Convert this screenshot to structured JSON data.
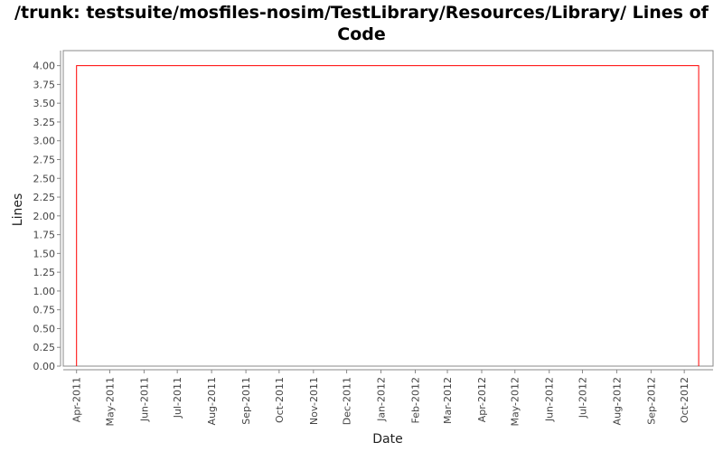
{
  "chart_data": {
    "type": "line",
    "title": "/trunk: testsuite/mosfiles-nosim/TestLibrary/Resources/Library/ Lines of Code",
    "xlabel": "Date",
    "ylabel": "Lines",
    "ylim": [
      0,
      4.2
    ],
    "xlim": [
      "2011-03-20",
      "2012-10-27"
    ],
    "yticks": [
      "0.00",
      "0.25",
      "0.50",
      "0.75",
      "1.00",
      "1.25",
      "1.50",
      "1.75",
      "2.00",
      "2.25",
      "2.50",
      "2.75",
      "3.00",
      "3.25",
      "3.50",
      "3.75",
      "4.00"
    ],
    "xticks": [
      {
        "date": "2011-04-01",
        "label": "Apr-2011"
      },
      {
        "date": "2011-05-01",
        "label": "May-2011"
      },
      {
        "date": "2011-06-01",
        "label": "Jun-2011"
      },
      {
        "date": "2011-07-01",
        "label": "Jul-2011"
      },
      {
        "date": "2011-08-01",
        "label": "Aug-2011"
      },
      {
        "date": "2011-09-01",
        "label": "Sep-2011"
      },
      {
        "date": "2011-10-01",
        "label": "Oct-2011"
      },
      {
        "date": "2011-11-01",
        "label": "Nov-2011"
      },
      {
        "date": "2011-12-01",
        "label": "Dec-2011"
      },
      {
        "date": "2012-01-01",
        "label": "Jan-2012"
      },
      {
        "date": "2012-02-01",
        "label": "Feb-2012"
      },
      {
        "date": "2012-03-01",
        "label": "Mar-2012"
      },
      {
        "date": "2012-04-01",
        "label": "Apr-2012"
      },
      {
        "date": "2012-05-01",
        "label": "May-2012"
      },
      {
        "date": "2012-06-01",
        "label": "Jun-2012"
      },
      {
        "date": "2012-07-01",
        "label": "Jul-2012"
      },
      {
        "date": "2012-08-01",
        "label": "Aug-2012"
      },
      {
        "date": "2012-09-01",
        "label": "Sep-2012"
      },
      {
        "date": "2012-10-01",
        "label": "Oct-2012"
      }
    ],
    "series": [
      {
        "color": "#ff0000",
        "points": [
          {
            "x": "2011-04-01",
            "y": 0
          },
          {
            "x": "2011-04-01",
            "y": 4
          },
          {
            "x": "2012-10-14",
            "y": 4
          },
          {
            "x": "2012-10-14",
            "y": 0
          }
        ]
      }
    ],
    "grid": false,
    "legend": "none"
  }
}
